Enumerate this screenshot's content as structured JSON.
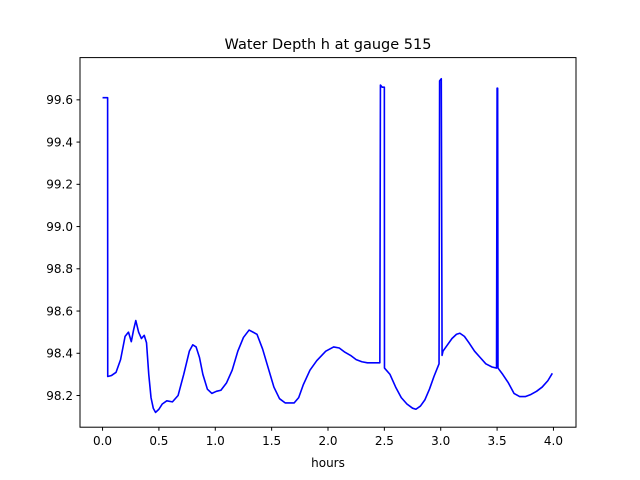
{
  "chart_data": {
    "type": "line",
    "title": "Water Depth h at gauge 515",
    "xlabel": "hours",
    "ylabel": "",
    "xlim": [
      -0.2,
      4.2
    ],
    "ylim": [
      98.05,
      99.8
    ],
    "xticks": [
      0.0,
      0.5,
      1.0,
      1.5,
      2.0,
      2.5,
      3.0,
      3.5,
      4.0
    ],
    "xtick_labels": [
      "0.0",
      "0.5",
      "1.0",
      "1.5",
      "2.0",
      "2.5",
      "3.0",
      "3.5",
      "4.0"
    ],
    "yticks": [
      98.2,
      98.4,
      98.6,
      98.8,
      99.0,
      99.2,
      99.4,
      99.6
    ],
    "ytick_labels": [
      "98.2",
      "98.4",
      "98.6",
      "98.8",
      "99.0",
      "99.2",
      "99.4",
      "99.6"
    ],
    "grid": false,
    "color": "#0000ff",
    "series": [
      {
        "x": [
          0.0,
          0.045,
          0.046,
          0.08,
          0.12,
          0.16,
          0.2,
          0.23,
          0.255,
          0.275,
          0.295,
          0.32,
          0.345,
          0.37,
          0.39,
          0.41,
          0.43,
          0.45,
          0.47,
          0.5,
          0.53,
          0.57,
          0.62,
          0.67,
          0.72,
          0.77,
          0.8,
          0.83,
          0.86,
          0.89,
          0.93,
          0.97,
          1.01,
          1.05,
          1.1,
          1.15,
          1.2,
          1.25,
          1.3,
          1.37,
          1.42,
          1.47,
          1.52,
          1.57,
          1.62,
          1.66,
          1.7,
          1.74,
          1.78,
          1.84,
          1.9,
          1.98,
          2.05,
          2.1,
          2.15,
          2.2,
          2.25,
          2.3,
          2.35,
          2.4,
          2.46,
          2.465,
          2.48,
          2.5,
          2.501,
          2.55,
          2.6,
          2.65,
          2.7,
          2.75,
          2.78,
          2.82,
          2.86,
          2.9,
          2.94,
          2.985,
          2.99,
          3.005,
          3.012,
          3.02,
          3.06,
          3.1,
          3.14,
          3.17,
          3.21,
          3.25,
          3.3,
          3.35,
          3.4,
          3.455,
          3.495,
          3.5,
          3.505,
          3.508,
          3.55,
          3.6,
          3.65,
          3.7,
          3.75,
          3.8,
          3.85,
          3.9,
          3.95,
          3.99
        ],
        "y": [
          99.61,
          99.61,
          98.29,
          98.295,
          98.31,
          98.37,
          98.48,
          98.5,
          98.455,
          98.51,
          98.555,
          98.5,
          98.47,
          98.485,
          98.45,
          98.3,
          98.19,
          98.14,
          98.12,
          98.135,
          98.16,
          98.175,
          98.17,
          98.2,
          98.3,
          98.41,
          98.44,
          98.43,
          98.38,
          98.3,
          98.23,
          98.21,
          98.22,
          98.225,
          98.26,
          98.32,
          98.41,
          98.475,
          98.51,
          98.49,
          98.42,
          98.33,
          98.24,
          98.185,
          98.165,
          98.165,
          98.165,
          98.19,
          98.25,
          98.32,
          98.365,
          98.41,
          98.43,
          98.425,
          98.405,
          98.39,
          98.37,
          98.36,
          98.355,
          98.355,
          98.355,
          99.67,
          99.66,
          99.66,
          98.33,
          98.3,
          98.24,
          98.19,
          98.16,
          98.14,
          98.135,
          98.15,
          98.18,
          98.23,
          98.29,
          98.35,
          99.69,
          99.7,
          98.39,
          98.41,
          98.44,
          98.47,
          98.49,
          98.495,
          98.48,
          98.45,
          98.41,
          98.38,
          98.35,
          98.335,
          98.33,
          99.655,
          99.655,
          98.33,
          98.3,
          98.26,
          98.21,
          98.195,
          98.195,
          98.205,
          98.22,
          98.24,
          98.27,
          98.305
        ]
      }
    ]
  }
}
